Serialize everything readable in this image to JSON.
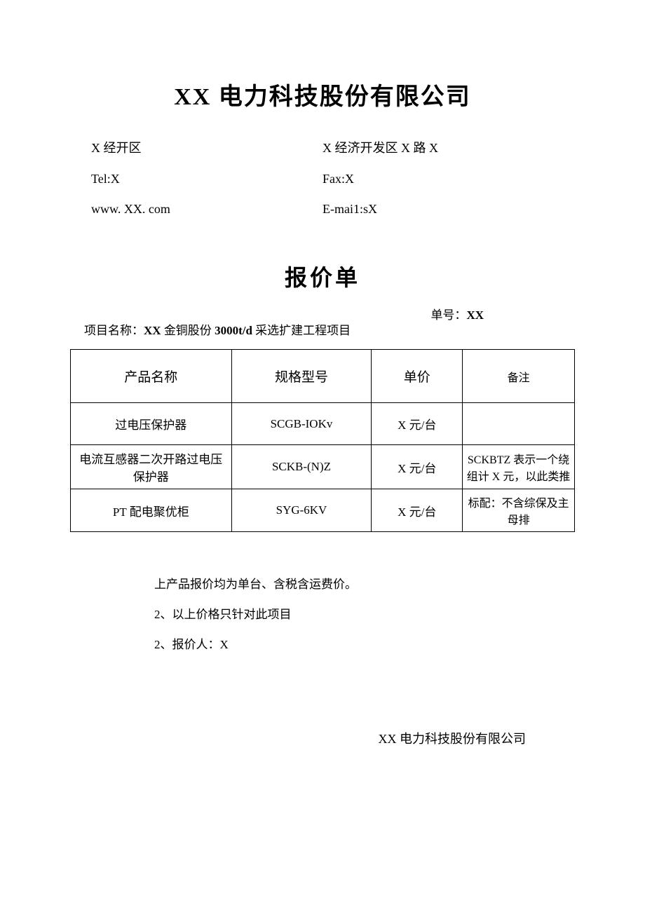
{
  "header": {
    "company": "XX 电力科技股份有限公司",
    "left1": "X 经开区",
    "right1": "X 经济开发区 X 路 X",
    "left2": "Tel:X",
    "right2": "Fax:X",
    "left3": "www. XX. com",
    "right3": "E-mai1:sX"
  },
  "doc": {
    "title": "报价单",
    "order_label": "单号：",
    "order_value": "XX",
    "project_label": "项目名称：",
    "project_value1": "XX",
    "project_value2": " 金铜股份 ",
    "project_value3": "3000t/d",
    "project_value4": " 采选扩建工程项目"
  },
  "table": {
    "headers": {
      "name": "产品名称",
      "spec": "规格型号",
      "price": "单价",
      "remark": "备注"
    },
    "rows": [
      {
        "name": "过电压保护器",
        "spec": "SCGB-IOKv",
        "price": "X 元/台",
        "remark": ""
      },
      {
        "name": "电流互感器二次开路过电压保护器",
        "spec": "SCKB-(N)Z",
        "price": "X 元/台",
        "remark": "SCKBTZ 表示一个绕组计 X 元，以此类推"
      },
      {
        "name": "PT 配电聚优柜",
        "spec": "SYG-6KV",
        "price": "X 元/台",
        "remark": "标配：不含综保及主母排"
      }
    ]
  },
  "notes": {
    "n1": "上产品报价均为单台、含税含运费价。",
    "n2": "2、以上价格只针对此项目",
    "n3": "2、报价人：X"
  },
  "footer": {
    "company": "XX 电力科技股份有限公司"
  }
}
